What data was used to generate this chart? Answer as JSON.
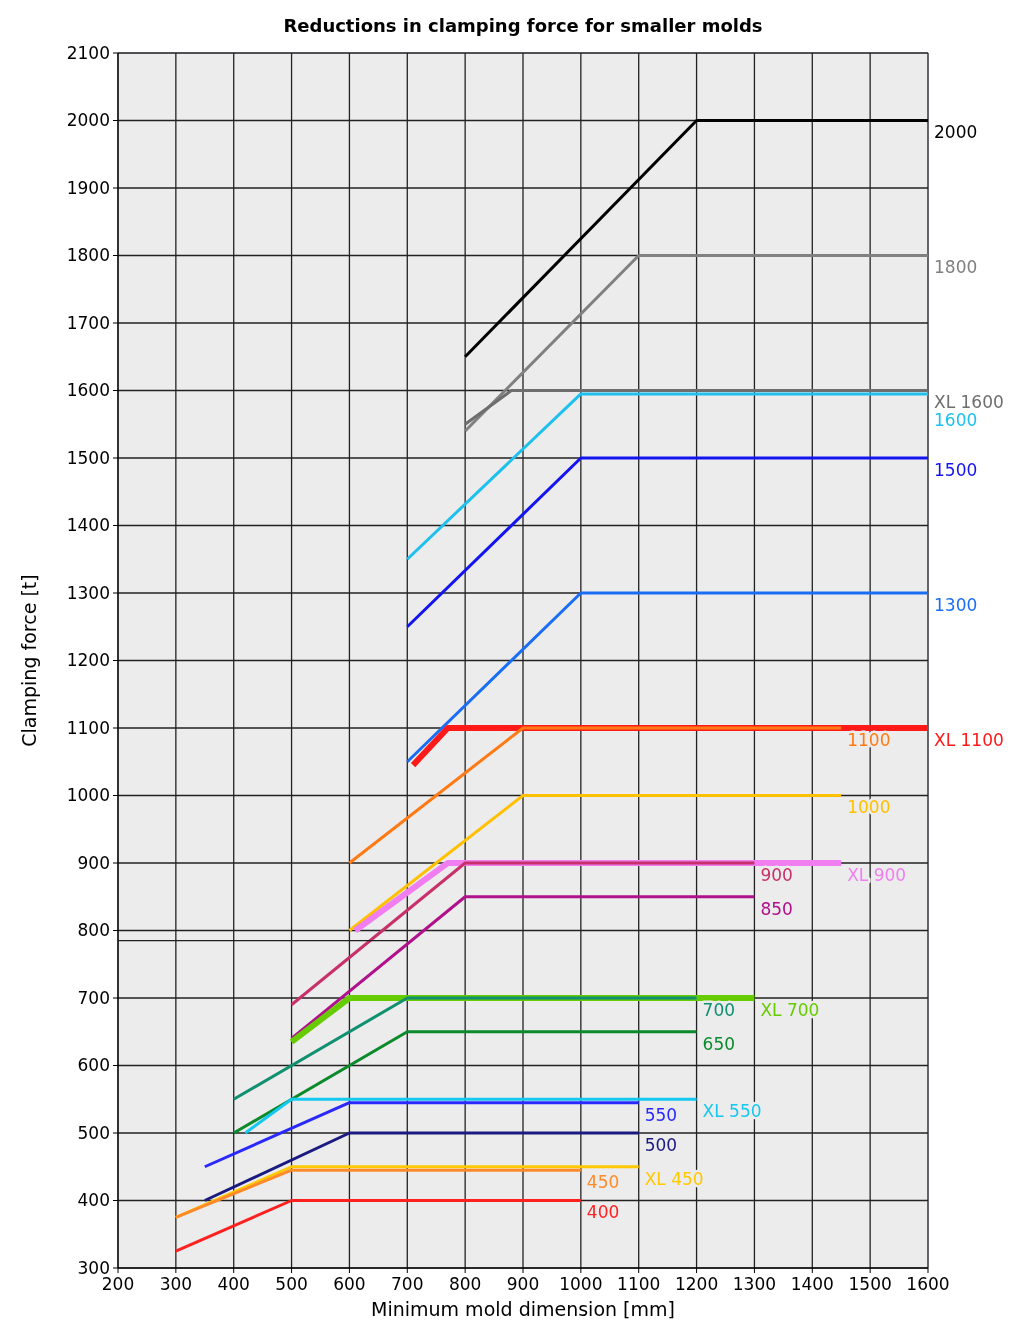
{
  "chart_data": {
    "type": "line",
    "title": "Reductions in clamping force for smaller molds",
    "xlabel": "Minimum mold dimension [mm]",
    "ylabel": "Clamping force [t]",
    "xlim": [
      200,
      1600
    ],
    "ylim": [
      300,
      2100
    ],
    "xticks": [
      200,
      300,
      400,
      500,
      600,
      700,
      800,
      900,
      1000,
      1100,
      1200,
      1300,
      1400,
      1500,
      1600
    ],
    "yticks": [
      300,
      400,
      500,
      600,
      700,
      800,
      900,
      1000,
      1100,
      1200,
      1300,
      1400,
      1500,
      1600,
      1700,
      1800,
      1900,
      2000,
      2100
    ],
    "grid": true,
    "marker": "none",
    "line_style": "solid",
    "series": [
      {
        "name": "2000",
        "color": "#000000",
        "x": [
          800,
          1200,
          1600
        ],
        "values": [
          1650,
          2000,
          2000
        ]
      },
      {
        "name": "1800",
        "color": "#808080",
        "x": [
          800,
          1100,
          1600
        ],
        "values": [
          1540,
          1800,
          1800
        ]
      },
      {
        "name": "XL  1600",
        "color": "#6e6e6e",
        "x": [
          800,
          880,
          1600
        ],
        "values": [
          1550,
          1600,
          1600
        ]
      },
      {
        "name": "1600",
        "color": "#1ec0ee",
        "x": [
          700,
          1000,
          1600
        ],
        "values": [
          1350,
          1595,
          1595
        ]
      },
      {
        "name": "1500",
        "color": "#1414f0",
        "x": [
          700,
          1000,
          1600
        ],
        "values": [
          1250,
          1500,
          1500
        ]
      },
      {
        "name": "1300",
        "color": "#1a6ef5",
        "x": [
          700,
          1000,
          1600
        ],
        "values": [
          1050,
          1300,
          1300
        ]
      },
      {
        "name": "XL  1100",
        "color": "#ff1a1a",
        "x": [
          710,
          770,
          1600
        ],
        "values": [
          1045,
          1100,
          1100
        ]
      },
      {
        "name": "1100",
        "color": "#ff7a14",
        "x": [
          600,
          900,
          1450
        ],
        "values": [
          900,
          1100,
          1100
        ]
      },
      {
        "name": "1000",
        "color": "#ffc000",
        "x": [
          600,
          900,
          1450
        ],
        "values": [
          800,
          1000,
          1000
        ]
      },
      {
        "name": "XL  900",
        "color": "#f07ef0",
        "x": [
          610,
          770,
          1450
        ],
        "values": [
          800,
          900,
          900
        ]
      },
      {
        "name": "900",
        "color": "#c8306a",
        "x": [
          500,
          800,
          1300
        ],
        "values": [
          690,
          900,
          900
        ]
      },
      {
        "name": "850",
        "color": "#b0108a",
        "x": [
          500,
          800,
          1300
        ],
        "values": [
          640,
          850,
          850
        ]
      },
      {
        "name": "XL  700",
        "color": "#66cc00",
        "x": [
          500,
          600,
          1300
        ],
        "values": [
          635,
          700,
          700
        ]
      },
      {
        "name": "700",
        "color": "#109070",
        "x": [
          400,
          700,
          1200
        ],
        "values": [
          550,
          700,
          700
        ]
      },
      {
        "name": "650",
        "color": "#0a8a2a",
        "x": [
          400,
          700,
          1200
        ],
        "values": [
          500,
          650,
          650
        ]
      },
      {
        "name": "XL  550",
        "color": "#14c8f0",
        "x": [
          420,
          500,
          1200
        ],
        "values": [
          500,
          550,
          550
        ]
      },
      {
        "name": "550",
        "color": "#2828ff",
        "x": [
          350,
          600,
          1100
        ],
        "values": [
          450,
          545,
          545
        ]
      },
      {
        "name": "500",
        "color": "#1a1a80",
        "x": [
          350,
          600,
          1100
        ],
        "values": [
          400,
          500,
          500
        ]
      },
      {
        "name": "XL  450",
        "color": "#ffc800",
        "x": [
          300,
          500,
          1100
        ],
        "values": [
          375,
          450,
          450
        ]
      },
      {
        "name": "450",
        "color": "#ff8a2a",
        "x": [
          300,
          500,
          1000
        ],
        "values": [
          375,
          445,
          445
        ]
      },
      {
        "name": "400",
        "color": "#ff2020",
        "x": [
          300,
          500,
          1000
        ],
        "values": [
          325,
          400,
          400
        ]
      },
      {
        "color": "#202020",
        "x": [
          200,
          700
        ],
        "values": [
          785,
          785
        ]
      }
    ]
  }
}
